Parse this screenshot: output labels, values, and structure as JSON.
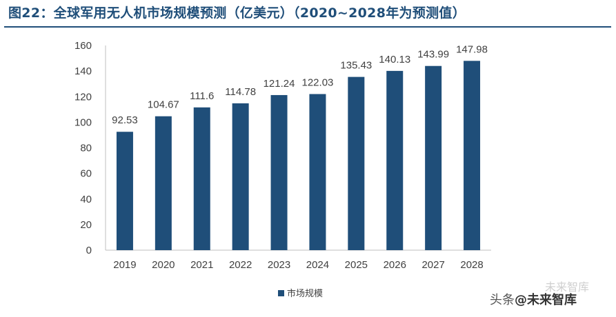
{
  "title": "图22：全球军用无人机市场规模预测（亿美元）（2020~2028年为预测值）",
  "chart_data": {
    "type": "bar",
    "categories": [
      "2019",
      "2020",
      "2021",
      "2022",
      "2023",
      "2024",
      "2025",
      "2026",
      "2027",
      "2028"
    ],
    "series": [
      {
        "name": "市场规模",
        "values": [
          92.53,
          104.67,
          111.6,
          114.78,
          121.24,
          122.03,
          135.43,
          140.13,
          143.99,
          147.98
        ]
      }
    ],
    "value_labels": [
      "92.53",
      "104.67",
      "111.6",
      "114.78",
      "121.24",
      "122.03",
      "135.43",
      "140.13",
      "143.99",
      "147.98"
    ],
    "yticks": [
      0,
      20,
      40,
      60,
      80,
      100,
      120,
      140,
      160
    ],
    "ylim": [
      0,
      160
    ],
    "grid": false,
    "legend": "bottom",
    "colors": {
      "bar": "#1F4E79",
      "title": "#1F4E79",
      "axis": "#BFBFBF"
    }
  },
  "watermark": {
    "prefix": "头条",
    "brand": "@未来智库",
    "logo_text": "未来智库"
  }
}
